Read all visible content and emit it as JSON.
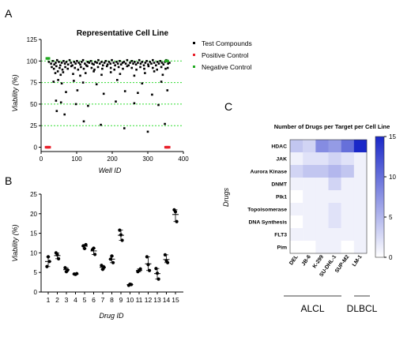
{
  "panels": {
    "a": {
      "letter": "A"
    },
    "b": {
      "letter": "B"
    },
    "c": {
      "letter": "C"
    }
  },
  "colors": {
    "test": "#000000",
    "positive": "#e8202a",
    "negative": "#22aa22",
    "threshold": "#33dd33",
    "heat_low": "#ffffff",
    "heat_high": "#1a28c8"
  },
  "chart_data": [
    {
      "id": "A",
      "type": "scatter",
      "title": "Representative Cell Line",
      "xlabel": "Well ID",
      "ylabel": "Viability (%)",
      "xlim": [
        0,
        400
      ],
      "ylim": [
        -5,
        125
      ],
      "xticks": [
        0,
        100,
        200,
        300,
        400
      ],
      "yticks": [
        0,
        25,
        50,
        75,
        100,
        125
      ],
      "reference_lines": [
        25,
        50,
        75,
        100
      ],
      "legend": {
        "placement": "top-right",
        "entries": [
          "Test Compounds",
          "Positive Control",
          "Negative Control"
        ]
      },
      "series": [
        {
          "name": "Test Compounds",
          "role": "test",
          "x": [
            22,
            28,
            33,
            37,
            41,
            45,
            50,
            54,
            58,
            63,
            67,
            71,
            76,
            80,
            84,
            88,
            93,
            97,
            101,
            106,
            110,
            114,
            118,
            123,
            127,
            131,
            135,
            140,
            144,
            148,
            152,
            157,
            161,
            165,
            170,
            174,
            178,
            182,
            187,
            191,
            195,
            199,
            204,
            208,
            212,
            216,
            221,
            225,
            229,
            233,
            238,
            242,
            246,
            250,
            255,
            259,
            263,
            267,
            272,
            276,
            280,
            284,
            289,
            293,
            297,
            301,
            306,
            310,
            314,
            318,
            323,
            327,
            331,
            335,
            340,
            344,
            348,
            352,
            357,
            361,
            30,
            36,
            43,
            52,
            60,
            68,
            75,
            85,
            95,
            104,
            112,
            120,
            130,
            142,
            150,
            160,
            172,
            185,
            196,
            206,
            218,
            230,
            242,
            255,
            268,
            279,
            290,
            302,
            314,
            326,
            338,
            350,
            356,
            40,
            47,
            55,
            62,
            90,
            110,
            125,
            148,
            170,
            196,
            222,
            262,
            292,
            318,
            342,
            35,
            48,
            58,
            92,
            118,
            156,
            214,
            284,
            338,
            70,
            102,
            176,
            236,
            272,
            312,
            355,
            42,
            56,
            98,
            132,
            210,
            262,
            330,
            44,
            66,
            120,
            168,
            234,
            300,
            348
          ],
          "y": [
            99,
            97,
            100,
            96,
            98,
            101,
            99,
            95,
            98,
            100,
            97,
            99,
            96,
            101,
            98,
            95,
            99,
            97,
            100,
            98,
            96,
            99,
            101,
            97,
            95,
            99,
            98,
            100,
            97,
            96,
            99,
            98,
            101,
            97,
            99,
            95,
            98,
            100,
            96,
            99,
            97,
            101,
            98,
            95,
            99,
            97,
            100,
            96,
            98,
            99,
            97,
            101,
            95,
            98,
            100,
            97,
            99,
            96,
            98,
            101,
            97,
            99,
            95,
            98,
            100,
            96,
            99,
            97,
            101,
            98,
            95,
            99,
            97,
            100,
            98,
            96,
            99,
            101,
            97,
            98,
            93,
            91,
            94,
            92,
            90,
            93,
            91,
            94,
            92,
            90,
            93,
            91,
            94,
            92,
            90,
            93,
            91,
            94,
            92,
            90,
            93,
            91,
            94,
            92,
            90,
            93,
            91,
            94,
            92,
            90,
            93,
            91,
            92,
            86,
            88,
            84,
            87,
            85,
            83,
            86,
            88,
            84,
            87,
            85,
            83,
            86,
            88,
            84,
            76,
            78,
            74,
            77,
            75,
            73,
            78,
            74,
            76,
            64,
            66,
            62,
            65,
            63,
            61,
            66,
            54,
            52,
            50,
            48,
            53,
            51,
            49,
            42,
            38,
            30,
            26,
            22,
            18,
            27
          ]
        },
        {
          "name": "Positive Control",
          "role": "positive",
          "x": [
            14,
            16,
            18,
            20,
            22,
            24,
            350,
            352,
            354,
            356,
            358,
            360
          ],
          "y": [
            0,
            0,
            0,
            0,
            0,
            0,
            0,
            0,
            0,
            0,
            0,
            0
          ]
        },
        {
          "name": "Negative Control",
          "role": "negative",
          "x": [
            16,
            18,
            20,
            22,
            350,
            352,
            354,
            356
          ],
          "y": [
            103,
            103,
            103,
            103,
            100,
            100,
            100,
            100
          ]
        }
      ]
    },
    {
      "id": "B",
      "type": "scatter",
      "title": "",
      "xlabel": "Drug ID",
      "ylabel": "Viability (%)",
      "ylim": [
        0,
        25
      ],
      "yticks": [
        0,
        5,
        10,
        15,
        20,
        25
      ],
      "categories": [
        "1",
        "2",
        "3",
        "4",
        "5",
        "6",
        "7",
        "8",
        "9",
        "10",
        "11",
        "12",
        "13",
        "14",
        "15"
      ],
      "points": [
        [
          6.5,
          9.0,
          7.8
        ],
        [
          10.0,
          9.5,
          8.5
        ],
        [
          6.2,
          5.2,
          5.6
        ],
        [
          4.6,
          4.5,
          4.7
        ],
        [
          11.8,
          11.1,
          12.1
        ],
        [
          10.8,
          11.2,
          9.6
        ],
        [
          6.8,
          5.8,
          6.3
        ],
        [
          8.4,
          9.2,
          7.5
        ],
        [
          15.8,
          14.6,
          13.2
        ],
        [
          1.7,
          2.0,
          1.9
        ],
        [
          5.2,
          5.5,
          5.9
        ],
        [
          9.0,
          7.0,
          5.5
        ],
        [
          6.0,
          4.8,
          3.3
        ],
        [
          9.5,
          8.0,
          7.5
        ],
        [
          21.0,
          20.5,
          18.0
        ]
      ],
      "means": [
        7.8,
        9.3,
        5.7,
        4.6,
        11.7,
        10.5,
        6.3,
        8.4,
        14.5,
        1.9,
        5.5,
        7.2,
        4.7,
        8.3,
        19.8
      ]
    },
    {
      "id": "C",
      "type": "heatmap",
      "title": "Number of Drugs per Target per Cell Line",
      "xlabel": "",
      "ylabel": "Drugs",
      "columns": [
        "DEL",
        "JB-6",
        "K-299",
        "SU-DHL-1",
        "SUP-M2",
        "LM-1"
      ],
      "rows": [
        "HDAC",
        "JAK",
        "Aurora Kinase",
        "DNMT",
        "Plk1",
        "Topoisomerase",
        "DNA Synthesis",
        "FLT3",
        "Pim"
      ],
      "values": [
        [
          4,
          3,
          8,
          7,
          10,
          15
        ],
        [
          1,
          2,
          2,
          3,
          2,
          1
        ],
        [
          3,
          4,
          4,
          5,
          4,
          1
        ],
        [
          1,
          1,
          1,
          3,
          1,
          1
        ],
        [
          0,
          1,
          1,
          1,
          1,
          1
        ],
        [
          1,
          1,
          1,
          2,
          1,
          1
        ],
        [
          0,
          1,
          1,
          2,
          1,
          1
        ],
        [
          1,
          1,
          1,
          1,
          1,
          1
        ],
        [
          0,
          0,
          1,
          1,
          0,
          1
        ]
      ],
      "colorbar": {
        "min": 0,
        "max": 15,
        "ticks": [
          0,
          5,
          10,
          15
        ]
      },
      "groups": [
        {
          "label": "ALCL",
          "span": [
            0,
            4
          ]
        },
        {
          "label": "DLBCL",
          "span": [
            5,
            5
          ]
        }
      ]
    }
  ]
}
